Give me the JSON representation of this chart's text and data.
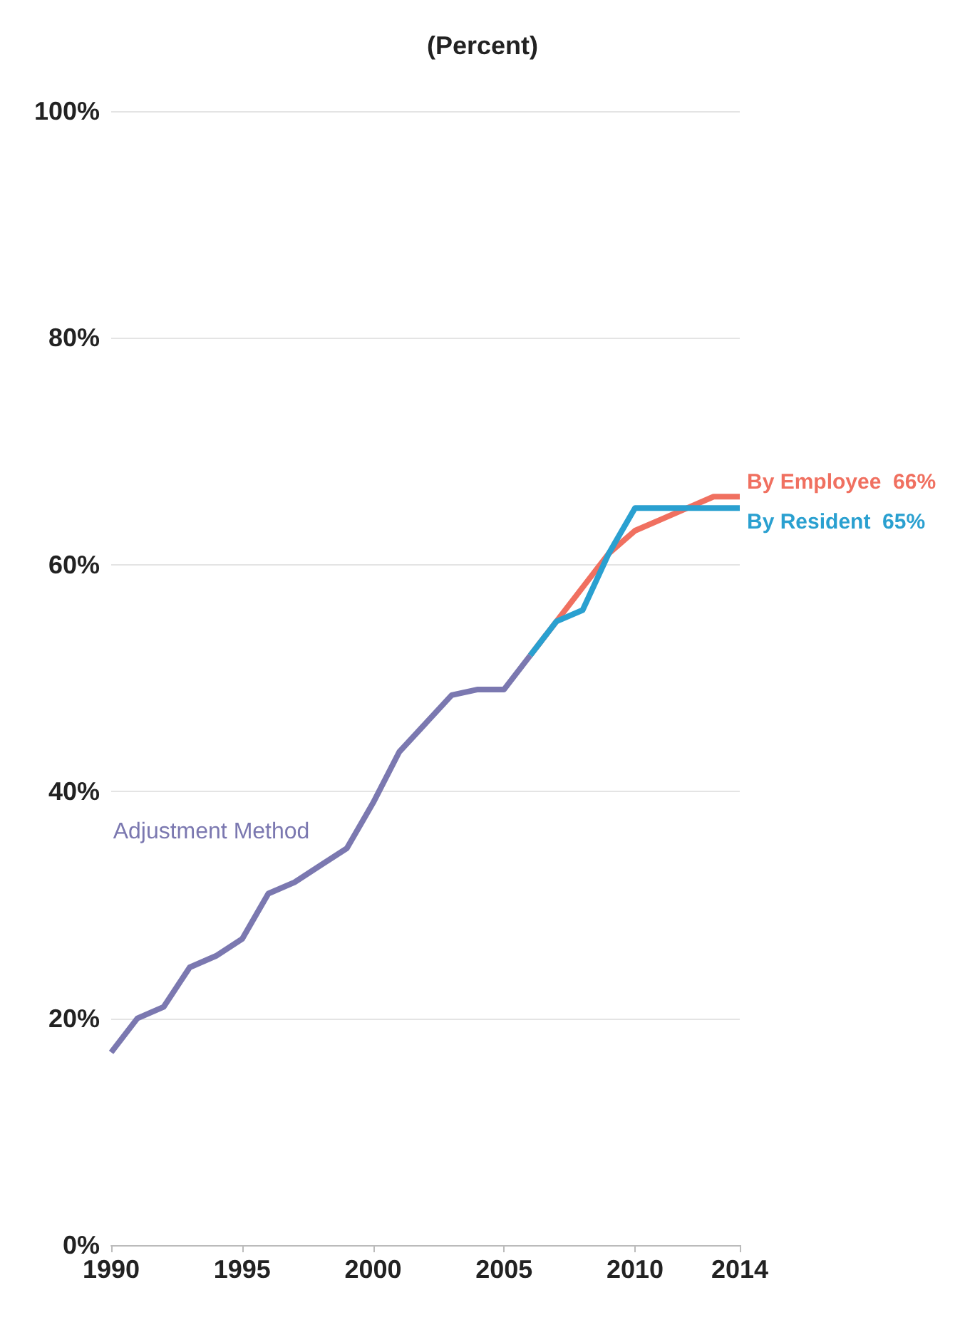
{
  "chart_data": {
    "type": "line",
    "title": "(Percent)",
    "xlim": [
      1990,
      2014
    ],
    "xticks": [
      1990,
      1995,
      2000,
      2005,
      2010,
      2014
    ],
    "ylim": [
      0,
      100
    ],
    "yticks": [
      {
        "value": 0,
        "label": "0%"
      },
      {
        "value": 20,
        "label": "20%"
      },
      {
        "value": 40,
        "label": "40%"
      },
      {
        "value": 60,
        "label": "60%"
      },
      {
        "value": 80,
        "label": "80%"
      },
      {
        "value": 100,
        "label": "100%"
      }
    ],
    "grid": "y",
    "legend": false,
    "series": [
      {
        "name": "Adjustment Method",
        "color": "#7b78b0",
        "x": [
          1990,
          1991,
          1992,
          1993,
          1994,
          1995,
          1996,
          1997,
          1998,
          1999,
          2000,
          2001,
          2002,
          2003,
          2004,
          2005,
          2006
        ],
        "values": [
          17,
          20,
          21,
          24.5,
          25.5,
          27,
          31,
          32,
          33.5,
          35,
          39,
          43.5,
          46,
          48.5,
          49,
          49,
          52
        ]
      },
      {
        "name": "By Employee",
        "color": "#f07060",
        "x": [
          2006,
          2007,
          2008,
          2009,
          2010,
          2011,
          2012,
          2013,
          2014
        ],
        "values": [
          52,
          55,
          58,
          61,
          63,
          64,
          65,
          66,
          66
        ],
        "value_labels": [
          null,
          null,
          null,
          null,
          null,
          null,
          null,
          null,
          "66%"
        ]
      },
      {
        "name": "By Resident",
        "color": "#2aa0d0",
        "x": [
          2006,
          2007,
          2008,
          2009,
          2010,
          2011,
          2012,
          2013,
          2014
        ],
        "values": [
          52,
          55,
          56,
          61,
          65,
          65,
          65,
          65,
          65
        ],
        "value_labels": [
          null,
          null,
          null,
          null,
          null,
          null,
          null,
          null,
          "65%"
        ]
      }
    ]
  }
}
